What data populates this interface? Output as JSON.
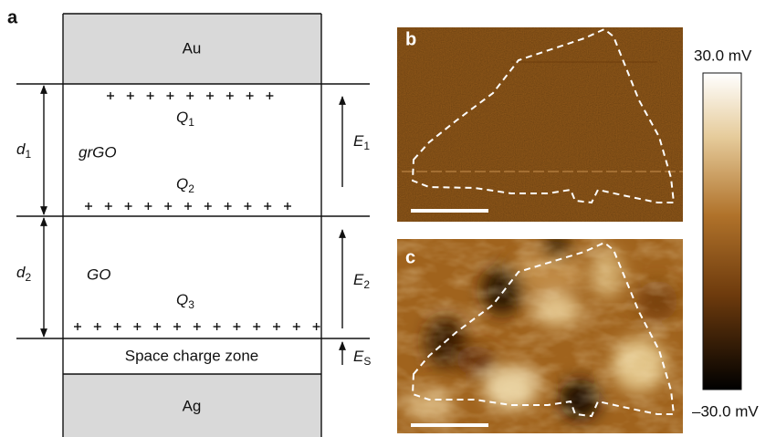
{
  "panel_labels": [
    "a",
    "b",
    "c"
  ],
  "layers": {
    "top_electrode": "Au",
    "layer1": "grGO",
    "layer2": "GO",
    "space_charge": "Space charge zone",
    "bottom_electrode": "Ag"
  },
  "thicknesses": [
    {
      "symbol": "d",
      "subscript": "1"
    },
    {
      "symbol": "d",
      "subscript": "2"
    }
  ],
  "charges": [
    {
      "symbol": "Q",
      "subscript": "1"
    },
    {
      "symbol": "Q",
      "subscript": "2"
    },
    {
      "symbol": "Q",
      "subscript": "3"
    }
  ],
  "fields": [
    {
      "symbol": "E",
      "subscript": "1"
    },
    {
      "symbol": "E",
      "subscript": "2"
    },
    {
      "symbol": "E",
      "subscript": "S"
    }
  ],
  "colorbar": {
    "max_label": "30.0 mV",
    "min_label": "–30.0 mV"
  }
}
